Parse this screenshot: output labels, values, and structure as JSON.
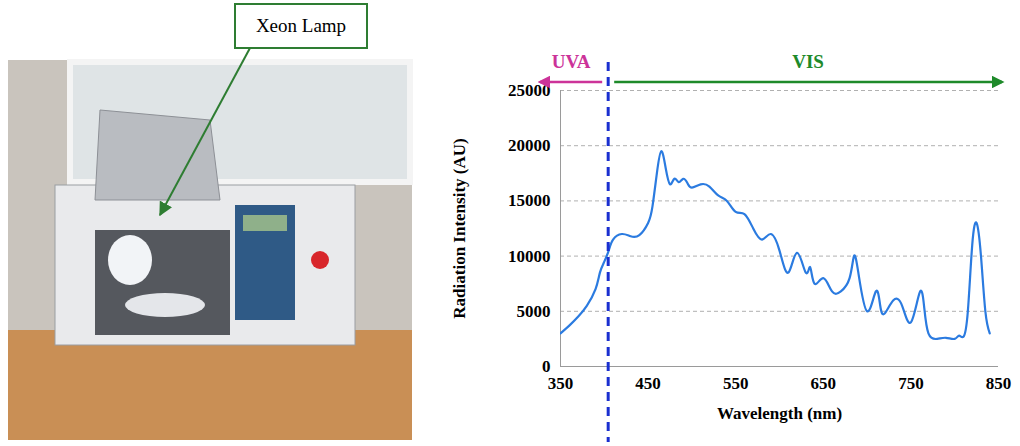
{
  "chart_data": {
    "type": "line",
    "x_label": "Wavelength (nm)",
    "y_label": "Radiation Intensity (AU)",
    "color": "#2b7be0",
    "x": [
      350,
      360,
      370,
      380,
      390,
      395,
      400,
      405,
      410,
      420,
      430,
      440,
      450,
      455,
      460,
      465,
      470,
      475,
      480,
      485,
      490,
      495,
      500,
      510,
      520,
      530,
      540,
      550,
      560,
      570,
      580,
      590,
      600,
      610,
      620,
      630,
      635,
      640,
      650,
      660,
      670,
      680,
      685,
      690,
      700,
      710,
      715,
      720,
      730,
      740,
      750,
      760,
      765,
      770,
      780,
      790,
      800,
      805,
      810,
      815,
      820,
      825,
      830,
      835,
      840
    ],
    "values": [
      3000,
      3700,
      4500,
      5500,
      7000,
      8500,
      9500,
      10500,
      11500,
      12000,
      11800,
      11900,
      13000,
      14500,
      17500,
      19500,
      18000,
      16500,
      17000,
      16700,
      17000,
      16600,
      16200,
      16500,
      16300,
      15500,
      15000,
      14000,
      13800,
      12500,
      11500,
      12000,
      10500,
      8500,
      10300,
      8500,
      9000,
      7500,
      8000,
      6800,
      6800,
      8000,
      10000,
      8500,
      5000,
      6800,
      5500,
      4800,
      6000,
      5500,
      4000,
      6700,
      5500,
      3000,
      2500,
      2600,
      2500,
      2800,
      2700,
      5000,
      11000,
      13000,
      10000,
      5000,
      3000
    ],
    "xlim": [
      350,
      850
    ],
    "xticks": [
      350,
      450,
      550,
      650,
      750,
      850
    ],
    "ylim": [
      0,
      25000
    ],
    "yticks": [
      0,
      5000,
      10000,
      15000,
      20000,
      25000
    ],
    "grid": true,
    "divider": {
      "x": 405,
      "color": "#1a2fd0",
      "line_style": "dashed"
    },
    "annotations": [
      {
        "text": "UVA",
        "color": "#cc3399",
        "side": "left"
      },
      {
        "text": "VIS",
        "color": "#1e8a2a",
        "side": "right"
      }
    ],
    "callout": {
      "text": "Xeon Lamp",
      "color": "#2e7d32"
    }
  }
}
